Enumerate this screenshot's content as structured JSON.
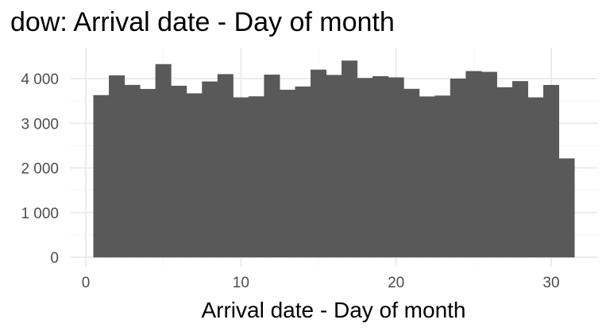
{
  "chart_data": {
    "type": "bar",
    "title": "dow: Arrival date - Day of month",
    "xlabel": "Arrival date - Day of month",
    "ylabel": "",
    "x": [
      1,
      2,
      3,
      4,
      5,
      6,
      7,
      8,
      9,
      10,
      11,
      12,
      13,
      14,
      15,
      16,
      17,
      18,
      19,
      20,
      21,
      22,
      23,
      24,
      25,
      26,
      27,
      28,
      29,
      30,
      31
    ],
    "values": [
      3626,
      4069,
      3855,
      3763,
      4320,
      3835,
      3665,
      3931,
      4096,
      3575,
      3599,
      4085,
      3745,
      3819,
      4196,
      4078,
      4399,
      4009,
      4050,
      4023,
      3767,
      3596,
      3616,
      3996,
      4164,
      4146,
      3802,
      3939,
      3575,
      3853,
      2208
    ],
    "xlim": [
      0,
      32
    ],
    "ylim": [
      0,
      4500
    ],
    "x_ticks": [
      0,
      10,
      20,
      30
    ],
    "y_ticks": [
      0,
      1000,
      2000,
      3000,
      4000
    ],
    "x_tick_labels": [
      "0",
      "10",
      "20",
      "30"
    ],
    "y_tick_labels": [
      "0",
      "1 000",
      "2 000",
      "3 000",
      "4 000"
    ],
    "bar_color": "#595959",
    "grid_major_color": "#ebebeb",
    "grid_minor_color": "#f5f5f5",
    "grid": true,
    "legend": "none"
  }
}
